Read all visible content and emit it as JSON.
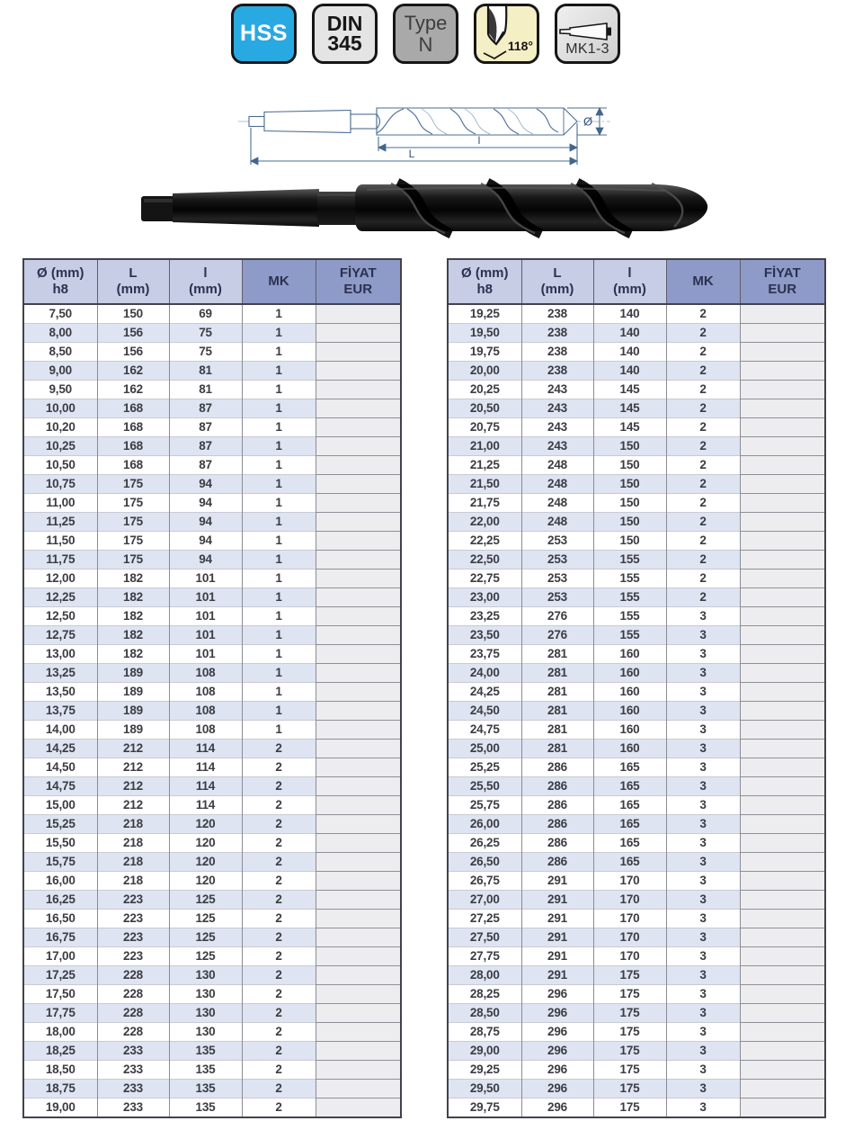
{
  "badges": {
    "hss": {
      "label": "HSS"
    },
    "din": {
      "line1": "DIN",
      "line2": "345"
    },
    "type": {
      "line1": "Type",
      "line2": "N"
    },
    "angle": {
      "label": "118°"
    },
    "mk": {
      "label": "MK1-3"
    }
  },
  "diagram": {
    "flute_length_label": "l",
    "overall_length_label": "L",
    "diameter_label": "Ø"
  },
  "colors": {
    "hss_badge_bg": "#29a9e1",
    "angle_badge_bg": "#f5efc6",
    "header_light": "#c6cde5",
    "header_dark": "#8e9ac7",
    "row_stripe": "#dee4f2",
    "price_cell_bg": "#ededef",
    "drawing_line": "#4a6d94"
  },
  "tables": [
    {
      "headers": [
        {
          "l1": "Ø (mm)",
          "l2": "h8"
        },
        {
          "l1": "L",
          "l2": "(mm)"
        },
        {
          "l1": "l",
          "l2": "(mm)"
        },
        {
          "l1": "MK",
          "l2": ""
        },
        {
          "l1": "FİYAT",
          "l2": "EUR"
        }
      ],
      "rows": [
        [
          "7,50",
          "150",
          "69",
          "1"
        ],
        [
          "8,00",
          "156",
          "75",
          "1"
        ],
        [
          "8,50",
          "156",
          "75",
          "1"
        ],
        [
          "9,00",
          "162",
          "81",
          "1"
        ],
        [
          "9,50",
          "162",
          "81",
          "1"
        ],
        [
          "10,00",
          "168",
          "87",
          "1"
        ],
        [
          "10,20",
          "168",
          "87",
          "1"
        ],
        [
          "10,25",
          "168",
          "87",
          "1"
        ],
        [
          "10,50",
          "168",
          "87",
          "1"
        ],
        [
          "10,75",
          "175",
          "94",
          "1"
        ],
        [
          "11,00",
          "175",
          "94",
          "1"
        ],
        [
          "11,25",
          "175",
          "94",
          "1"
        ],
        [
          "11,50",
          "175",
          "94",
          "1"
        ],
        [
          "11,75",
          "175",
          "94",
          "1"
        ],
        [
          "12,00",
          "182",
          "101",
          "1"
        ],
        [
          "12,25",
          "182",
          "101",
          "1"
        ],
        [
          "12,50",
          "182",
          "101",
          "1"
        ],
        [
          "12,75",
          "182",
          "101",
          "1"
        ],
        [
          "13,00",
          "182",
          "101",
          "1"
        ],
        [
          "13,25",
          "189",
          "108",
          "1"
        ],
        [
          "13,50",
          "189",
          "108",
          "1"
        ],
        [
          "13,75",
          "189",
          "108",
          "1"
        ],
        [
          "14,00",
          "189",
          "108",
          "1"
        ],
        [
          "14,25",
          "212",
          "114",
          "2"
        ],
        [
          "14,50",
          "212",
          "114",
          "2"
        ],
        [
          "14,75",
          "212",
          "114",
          "2"
        ],
        [
          "15,00",
          "212",
          "114",
          "2"
        ],
        [
          "15,25",
          "218",
          "120",
          "2"
        ],
        [
          "15,50",
          "218",
          "120",
          "2"
        ],
        [
          "15,75",
          "218",
          "120",
          "2"
        ],
        [
          "16,00",
          "218",
          "120",
          "2"
        ],
        [
          "16,25",
          "223",
          "125",
          "2"
        ],
        [
          "16,50",
          "223",
          "125",
          "2"
        ],
        [
          "16,75",
          "223",
          "125",
          "2"
        ],
        [
          "17,00",
          "223",
          "125",
          "2"
        ],
        [
          "17,25",
          "228",
          "130",
          "2"
        ],
        [
          "17,50",
          "228",
          "130",
          "2"
        ],
        [
          "17,75",
          "228",
          "130",
          "2"
        ],
        [
          "18,00",
          "228",
          "130",
          "2"
        ],
        [
          "18,25",
          "233",
          "135",
          "2"
        ],
        [
          "18,50",
          "233",
          "135",
          "2"
        ],
        [
          "18,75",
          "233",
          "135",
          "2"
        ],
        [
          "19,00",
          "233",
          "135",
          "2"
        ]
      ]
    },
    {
      "headers": [
        {
          "l1": "Ø (mm)",
          "l2": "h8"
        },
        {
          "l1": "L",
          "l2": "(mm)"
        },
        {
          "l1": "l",
          "l2": "(mm)"
        },
        {
          "l1": "MK",
          "l2": ""
        },
        {
          "l1": "FİYAT",
          "l2": "EUR"
        }
      ],
      "rows": [
        [
          "19,25",
          "238",
          "140",
          "2"
        ],
        [
          "19,50",
          "238",
          "140",
          "2"
        ],
        [
          "19,75",
          "238",
          "140",
          "2"
        ],
        [
          "20,00",
          "238",
          "140",
          "2"
        ],
        [
          "20,25",
          "243",
          "145",
          "2"
        ],
        [
          "20,50",
          "243",
          "145",
          "2"
        ],
        [
          "20,75",
          "243",
          "145",
          "2"
        ],
        [
          "21,00",
          "243",
          "150",
          "2"
        ],
        [
          "21,25",
          "248",
          "150",
          "2"
        ],
        [
          "21,50",
          "248",
          "150",
          "2"
        ],
        [
          "21,75",
          "248",
          "150",
          "2"
        ],
        [
          "22,00",
          "248",
          "150",
          "2"
        ],
        [
          "22,25",
          "253",
          "150",
          "2"
        ],
        [
          "22,50",
          "253",
          "155",
          "2"
        ],
        [
          "22,75",
          "253",
          "155",
          "2"
        ],
        [
          "23,00",
          "253",
          "155",
          "2"
        ],
        [
          "23,25",
          "276",
          "155",
          "3"
        ],
        [
          "23,50",
          "276",
          "155",
          "3"
        ],
        [
          "23,75",
          "281",
          "160",
          "3"
        ],
        [
          "24,00",
          "281",
          "160",
          "3"
        ],
        [
          "24,25",
          "281",
          "160",
          "3"
        ],
        [
          "24,50",
          "281",
          "160",
          "3"
        ],
        [
          "24,75",
          "281",
          "160",
          "3"
        ],
        [
          "25,00",
          "281",
          "160",
          "3"
        ],
        [
          "25,25",
          "286",
          "165",
          "3"
        ],
        [
          "25,50",
          "286",
          "165",
          "3"
        ],
        [
          "25,75",
          "286",
          "165",
          "3"
        ],
        [
          "26,00",
          "286",
          "165",
          "3"
        ],
        [
          "26,25",
          "286",
          "165",
          "3"
        ],
        [
          "26,50",
          "286",
          "165",
          "3"
        ],
        [
          "26,75",
          "291",
          "170",
          "3"
        ],
        [
          "27,00",
          "291",
          "170",
          "3"
        ],
        [
          "27,25",
          "291",
          "170",
          "3"
        ],
        [
          "27,50",
          "291",
          "170",
          "3"
        ],
        [
          "27,75",
          "291",
          "170",
          "3"
        ],
        [
          "28,00",
          "291",
          "175",
          "3"
        ],
        [
          "28,25",
          "296",
          "175",
          "3"
        ],
        [
          "28,50",
          "296",
          "175",
          "3"
        ],
        [
          "28,75",
          "296",
          "175",
          "3"
        ],
        [
          "29,00",
          "296",
          "175",
          "3"
        ],
        [
          "29,25",
          "296",
          "175",
          "3"
        ],
        [
          "29,50",
          "296",
          "175",
          "3"
        ],
        [
          "29,75",
          "296",
          "175",
          "3"
        ]
      ]
    }
  ]
}
